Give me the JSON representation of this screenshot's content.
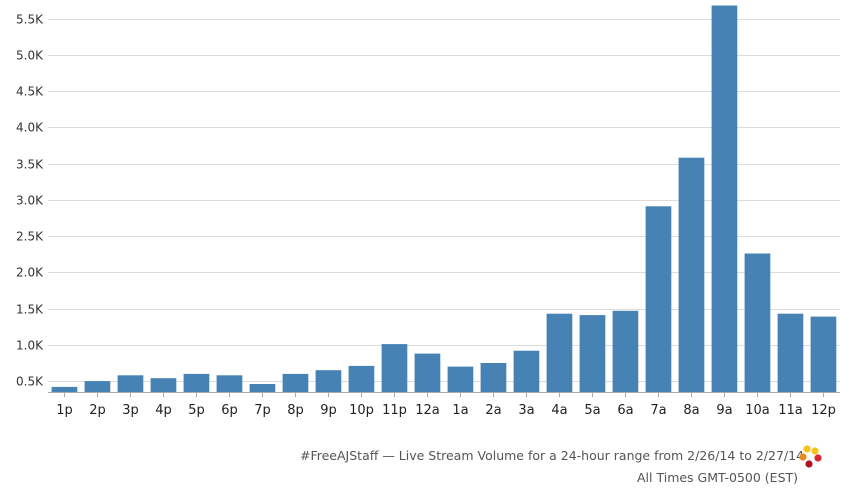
{
  "chart_data": {
    "type": "bar",
    "title": "#FreeAJStaff — Live Stream Volume for a 24-hour range from 2/26/14 to 2/27/14",
    "subtitle": "All Times GMT-0500 (EST)",
    "xlabel": "",
    "ylabel": "",
    "categories": [
      "1p",
      "2p",
      "3p",
      "4p",
      "5p",
      "6p",
      "7p",
      "8p",
      "9p",
      "10p",
      "11p",
      "12a",
      "1a",
      "2a",
      "3a",
      "4a",
      "5a",
      "6a",
      "7a",
      "8a",
      "9a",
      "10a",
      "11a",
      "12p"
    ],
    "values": [
      420,
      500,
      580,
      540,
      600,
      580,
      460,
      600,
      650,
      710,
      1010,
      880,
      700,
      750,
      920,
      1430,
      1410,
      1470,
      2910,
      3580,
      5680,
      2260,
      1430,
      1390
    ],
    "ylim": [
      350,
      5700
    ],
    "yticks": [
      500,
      1000,
      1500,
      2000,
      2500,
      3000,
      3500,
      4000,
      4500,
      5000,
      5500
    ],
    "ytick_labels": [
      "0.5K",
      "1.0K",
      "1.5K",
      "2.0K",
      "2.5K",
      "3.0K",
      "3.5K",
      "4.0K",
      "4.5K",
      "5.0K",
      "5.5K"
    ],
    "grid": true,
    "bar_color": "#4682b4"
  },
  "logo": {
    "name": "brand-logo-icon",
    "colors": [
      "#f5c518",
      "#e98b1c",
      "#d7262e",
      "#b0131d"
    ]
  }
}
